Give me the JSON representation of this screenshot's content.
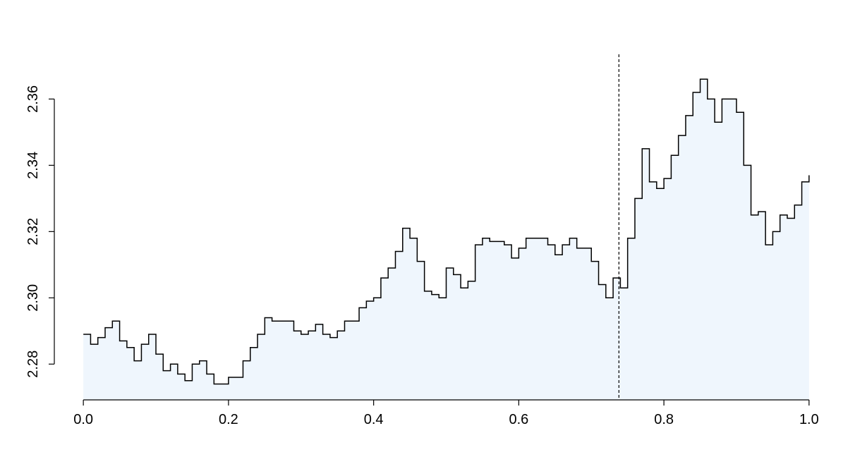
{
  "chart_data": {
    "type": "step-area",
    "x": [
      0.0,
      0.01,
      0.02,
      0.03,
      0.04,
      0.05,
      0.06,
      0.07,
      0.08,
      0.09,
      0.1,
      0.11,
      0.12,
      0.13,
      0.14,
      0.15,
      0.16,
      0.17,
      0.18,
      0.19,
      0.2,
      0.21,
      0.22,
      0.23,
      0.24,
      0.25,
      0.26,
      0.27,
      0.28,
      0.29,
      0.3,
      0.31,
      0.32,
      0.33,
      0.34,
      0.35,
      0.36,
      0.37,
      0.38,
      0.39,
      0.4,
      0.41,
      0.42,
      0.43,
      0.44,
      0.45,
      0.46,
      0.47,
      0.48,
      0.49,
      0.5,
      0.51,
      0.52,
      0.53,
      0.54,
      0.55,
      0.56,
      0.57,
      0.58,
      0.59,
      0.6,
      0.61,
      0.62,
      0.63,
      0.64,
      0.65,
      0.66,
      0.67,
      0.68,
      0.69,
      0.7,
      0.71,
      0.72,
      0.73,
      0.74,
      0.75,
      0.76,
      0.77,
      0.78,
      0.79,
      0.8,
      0.81,
      0.82,
      0.83,
      0.84,
      0.85,
      0.86,
      0.87,
      0.88,
      0.89,
      0.9,
      0.91,
      0.92,
      0.93,
      0.94,
      0.95,
      0.96,
      0.97,
      0.98,
      0.99,
      1.0
    ],
    "values": [
      2.289,
      2.286,
      2.288,
      2.291,
      2.293,
      2.287,
      2.285,
      2.281,
      2.286,
      2.289,
      2.283,
      2.278,
      2.28,
      2.277,
      2.275,
      2.28,
      2.281,
      2.277,
      2.274,
      2.274,
      2.276,
      2.276,
      2.281,
      2.285,
      2.289,
      2.294,
      2.293,
      2.293,
      2.293,
      2.29,
      2.289,
      2.29,
      2.292,
      2.289,
      2.288,
      2.29,
      2.293,
      2.293,
      2.297,
      2.299,
      2.3,
      2.306,
      2.309,
      2.314,
      2.321,
      2.318,
      2.311,
      2.302,
      2.301,
      2.3,
      2.309,
      2.307,
      2.303,
      2.305,
      2.316,
      2.318,
      2.317,
      2.317,
      2.316,
      2.312,
      2.315,
      2.318,
      2.318,
      2.318,
      2.316,
      2.313,
      2.316,
      2.318,
      2.315,
      2.315,
      2.311,
      2.304,
      2.3,
      2.306,
      2.303,
      2.318,
      2.33,
      2.345,
      2.335,
      2.333,
      2.336,
      2.343,
      2.349,
      2.355,
      2.362,
      2.366,
      2.36,
      2.353,
      2.36,
      2.36,
      2.356,
      2.34,
      2.325,
      2.326,
      2.316,
      2.32,
      2.325,
      2.324,
      2.328,
      2.335,
      2.337
    ],
    "line_color": "#000000",
    "fill_color": "#eff6fd",
    "vline": 0.738,
    "xlim": [
      -0.04,
      1.04
    ],
    "ylim": [
      2.2692,
      2.3735
    ],
    "xticks": [
      {
        "value": 0,
        "label": "0.0"
      },
      0.2,
      0.4,
      0.6,
      0.8,
      {
        "value": 1,
        "label": "1.0"
      }
    ],
    "yticks": [
      2.28,
      {
        "value": 2.3,
        "label": "2.30"
      },
      2.32,
      2.34,
      2.36
    ]
  }
}
